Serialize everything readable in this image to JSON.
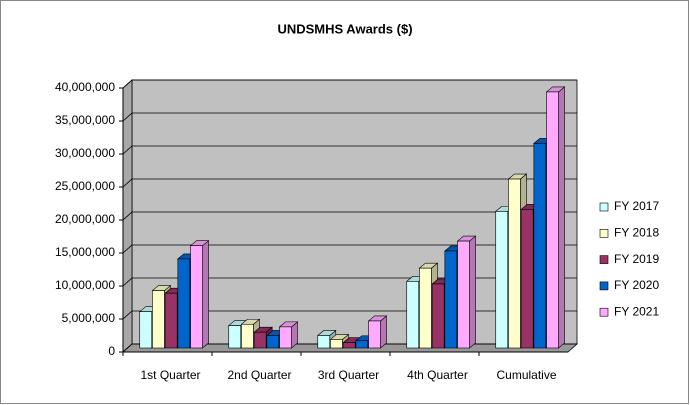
{
  "chart_data": {
    "type": "bar3d",
    "title": "UNDSMHS Awards ($)",
    "categories": [
      "1st Quarter",
      "2nd Quarter",
      "3rd Quarter",
      "4th Quarter",
      "Cumulative"
    ],
    "series": [
      {
        "name": "FY 2017",
        "color": "#ccffff",
        "values": [
          5500000,
          3400000,
          1900000,
          10100000,
          20700000
        ]
      },
      {
        "name": "FY 2018",
        "color": "#ffffcc",
        "values": [
          8700000,
          3600000,
          1300000,
          12100000,
          25600000
        ]
      },
      {
        "name": "FY 2019",
        "color": "#993366",
        "values": [
          8300000,
          2400000,
          800000,
          9700000,
          21000000
        ]
      },
      {
        "name": "FY 2020",
        "color": "#0066cc",
        "values": [
          13500000,
          1900000,
          1100000,
          14700000,
          31000000
        ]
      },
      {
        "name": "FY 2021",
        "color": "#ffaaff",
        "values": [
          15500000,
          3200000,
          4100000,
          16200000,
          38800000
        ]
      }
    ],
    "ylim": [
      0,
      40000000
    ],
    "yticks": [
      0,
      {
        "value": 5000000,
        "label": "5,000,000"
      },
      {
        "value": 10000000,
        "label": "10,000,000"
      },
      {
        "value": 15000000,
        "label": "15,000,000"
      },
      {
        "value": 20000000,
        "label": "20,000,000"
      },
      {
        "value": 25000000,
        "label": "25,000,000"
      },
      {
        "value": 30000000,
        "label": "30,000,000"
      },
      {
        "value": 35000000,
        "label": "35,000,000"
      },
      {
        "value": 40000000,
        "label": "40,000,000"
      }
    ],
    "grid": true,
    "legend": "right"
  }
}
